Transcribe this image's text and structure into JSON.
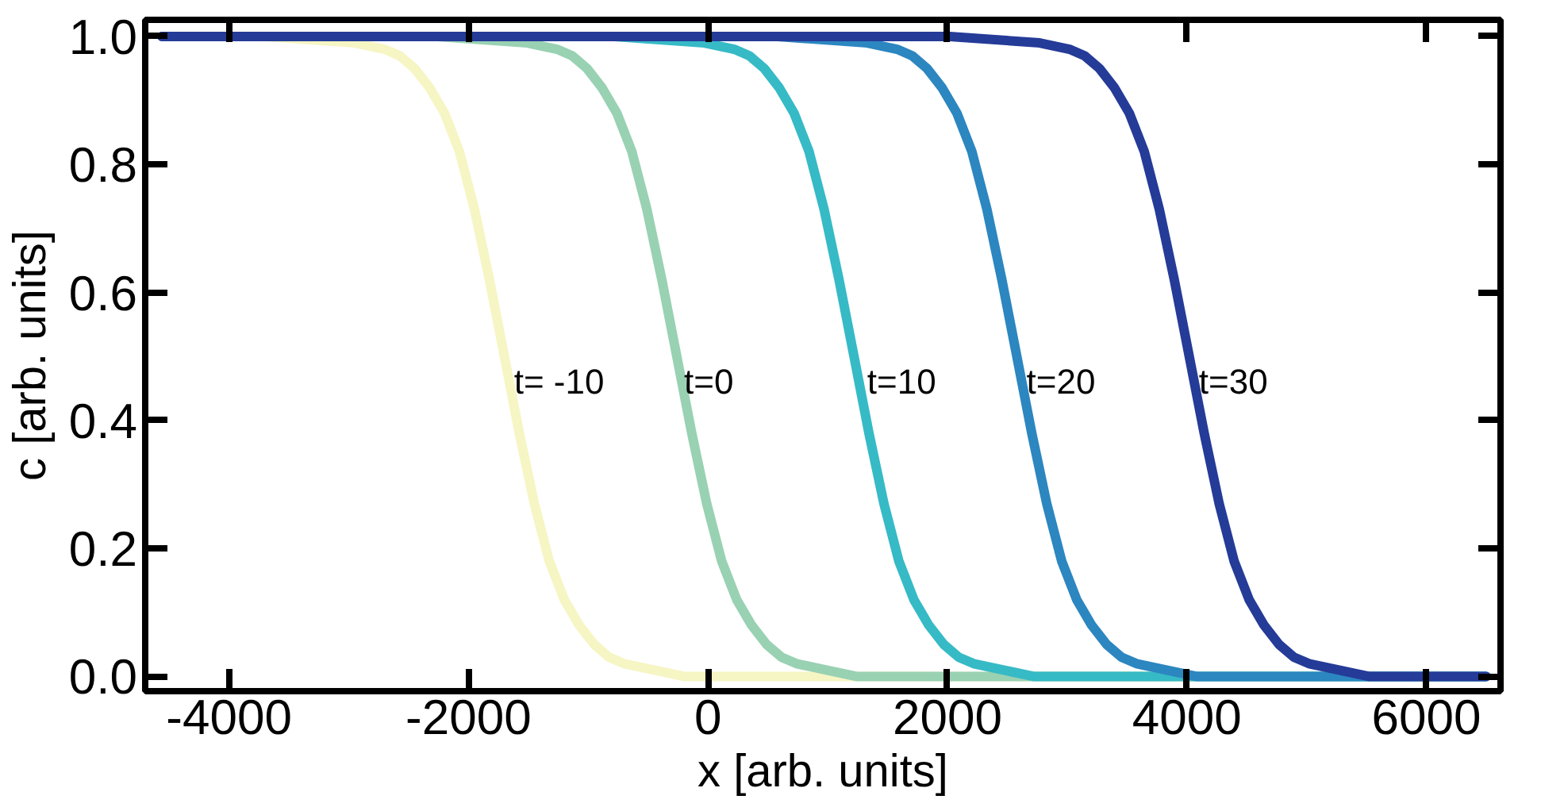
{
  "chart_data": {
    "type": "line",
    "xlabel": "x [arb. units]",
    "ylabel": "c [arb. units]",
    "xlim": [
      -4700,
      6620
    ],
    "ylim": [
      -0.023,
      1.026
    ],
    "xticks": [
      -4000,
      -2000,
      0,
      2000,
      4000,
      6000
    ],
    "yticks": [
      {
        "value": 0,
        "label": "0.0"
      },
      0.2,
      0.4,
      0.6,
      0.8,
      {
        "value": 1,
        "label": "1.0"
      }
    ],
    "grid": false,
    "marker": "none",
    "line_style": "solid",
    "series": [
      {
        "color": "#f6f5c4",
        "x": [
          -3700,
          -2950,
          -2700,
          -2575,
          -2450,
          -2325,
          -2200,
          -2075,
          -1950,
          -1825,
          -1700,
          -1575,
          -1450,
          -1325,
          -1200,
          -1075,
          -950,
          -825,
          -700,
          -450,
          -200,
          6500
        ],
        "values": [
          1.0,
          0.99,
          0.98,
          0.97,
          0.95,
          0.92,
          0.88,
          0.82,
          0.73,
          0.62,
          0.5,
          0.38,
          0.27,
          0.18,
          0.12,
          0.08,
          0.05,
          0.03,
          0.02,
          0.01,
          0.0,
          0.0
        ]
      },
      {
        "color": "#99d1b3",
        "x": [
          -2260,
          -1510,
          -1260,
          -1135,
          -1010,
          -885,
          -760,
          -635,
          -510,
          -385,
          -260,
          -135,
          -10,
          115,
          240,
          365,
          490,
          615,
          740,
          990,
          1240,
          6500
        ],
        "values": [
          1.0,
          0.99,
          0.98,
          0.97,
          0.95,
          0.92,
          0.88,
          0.82,
          0.73,
          0.62,
          0.5,
          0.38,
          0.27,
          0.18,
          0.12,
          0.08,
          0.05,
          0.03,
          0.02,
          0.01,
          0.0,
          0.0
        ]
      },
      {
        "color": "#36bac6",
        "x": [
          -4560,
          -780,
          -30,
          220,
          345,
          470,
          595,
          720,
          845,
          970,
          1095,
          1220,
          1345,
          1470,
          1595,
          1720,
          1845,
          1970,
          2095,
          2220,
          2470,
          2720,
          6500
        ],
        "values": [
          1.0,
          1.0,
          0.99,
          0.98,
          0.97,
          0.95,
          0.92,
          0.88,
          0.82,
          0.73,
          0.62,
          0.5,
          0.38,
          0.27,
          0.18,
          0.12,
          0.08,
          0.05,
          0.03,
          0.02,
          0.01,
          0.0,
          0.0
        ]
      },
      {
        "color": "#2c86c0",
        "x": [
          -4560,
          580,
          1330,
          1580,
          1705,
          1830,
          1955,
          2080,
          2205,
          2330,
          2455,
          2580,
          2705,
          2830,
          2955,
          3080,
          3205,
          3330,
          3455,
          3580,
          3830,
          4080,
          6500
        ],
        "values": [
          1.0,
          1.0,
          0.99,
          0.98,
          0.97,
          0.95,
          0.92,
          0.88,
          0.82,
          0.73,
          0.62,
          0.5,
          0.38,
          0.27,
          0.18,
          0.12,
          0.08,
          0.05,
          0.03,
          0.02,
          0.01,
          0.0,
          0.0
        ]
      },
      {
        "color": "#253b98",
        "x": [
          -4560,
          2020,
          2770,
          3020,
          3145,
          3270,
          3395,
          3520,
          3645,
          3770,
          3895,
          4020,
          4145,
          4270,
          4395,
          4520,
          4645,
          4770,
          4895,
          5020,
          5270,
          5520,
          6500
        ],
        "values": [
          1.0,
          1.0,
          0.99,
          0.98,
          0.97,
          0.95,
          0.92,
          0.88,
          0.82,
          0.73,
          0.62,
          0.5,
          0.38,
          0.27,
          0.18,
          0.12,
          0.08,
          0.05,
          0.03,
          0.02,
          0.01,
          0.0,
          0.0
        ]
      }
    ],
    "annotations": [
      {
        "text": "t= -10",
        "x": -1620,
        "y": 0.46
      },
      {
        "text": "t=0",
        "x": -200,
        "y": 0.46
      },
      {
        "text": "t=10",
        "x": 1330,
        "y": 0.46
      },
      {
        "text": "t=20",
        "x": 2660,
        "y": 0.46
      },
      {
        "text": "t=30",
        "x": 4100,
        "y": 0.46
      }
    ]
  }
}
